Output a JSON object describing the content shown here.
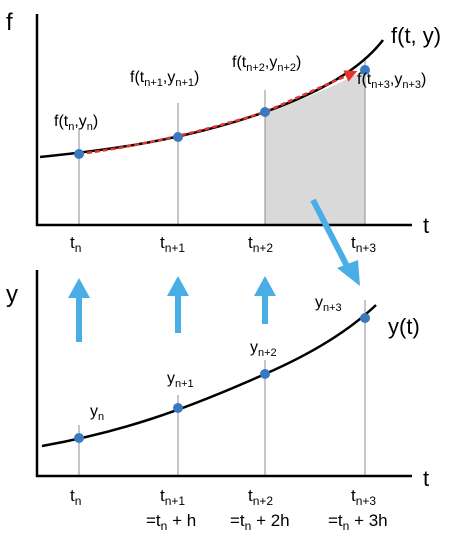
{
  "top_plot": {
    "y_axis_label": "f",
    "x_axis_label": "t",
    "curve_label": "f(t, y)",
    "point_labels": [
      {
        "base": "f(t",
        "sub1": "n",
        "mid": ",y",
        "sub2": "n",
        "end": ")"
      },
      {
        "base": "f(t",
        "sub1": "n+1",
        "mid": ",y",
        "sub2": "n+1",
        "end": ")"
      },
      {
        "base": "f(t",
        "sub1": "n+2",
        "mid": ",y",
        "sub2": "n+2",
        "end": ")"
      },
      {
        "base": "f(t",
        "sub1": "n+3",
        "mid": ",y",
        "sub2": "n+3",
        "end": ")"
      }
    ],
    "tick_labels": [
      {
        "base": "t",
        "sub": "n"
      },
      {
        "base": "t",
        "sub": "n+1"
      },
      {
        "base": "t",
        "sub": "n+2"
      },
      {
        "base": "t",
        "sub": "n+3"
      }
    ]
  },
  "bottom_plot": {
    "y_axis_label": "y",
    "x_axis_label": "t",
    "curve_label": "y(t)",
    "point_labels": [
      {
        "base": "y",
        "sub": "n"
      },
      {
        "base": "y",
        "sub": "n+1"
      },
      {
        "base": "y",
        "sub": "n+2"
      },
      {
        "base": "y",
        "sub": "n+3"
      }
    ],
    "tick_labels": [
      {
        "base": "t",
        "sub": "n"
      },
      {
        "base": "t",
        "sub": "n+1"
      },
      {
        "base": "t",
        "sub": "n+2"
      },
      {
        "base": "t",
        "sub": "n+3"
      }
    ],
    "step_labels": [
      {
        "pre": "=t",
        "sub": "n",
        "post": " + h"
      },
      {
        "pre": "=t",
        "sub": "n",
        "post": " + 2h"
      },
      {
        "pre": "=t",
        "sub": "n",
        "post": " + 3h"
      }
    ]
  },
  "colors": {
    "axis": "#000000",
    "curve": "#000000",
    "point": "#3a78c2",
    "extrapolation": "#e8322a",
    "shaded_area": "#d9d9d9",
    "arrow": "#4aaee6"
  }
}
